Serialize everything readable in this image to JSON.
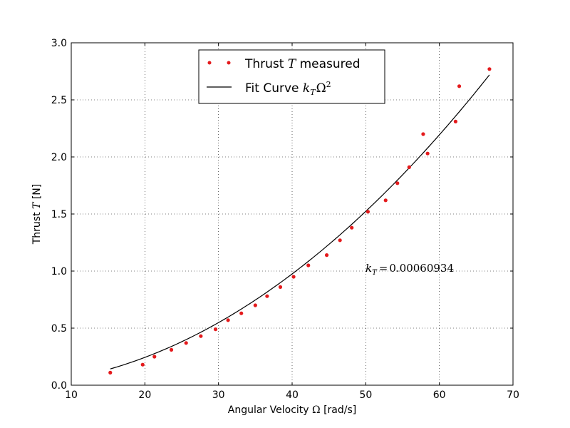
{
  "chart_data": {
    "type": "scatter",
    "title": "",
    "xlabel": {
      "prefix": "Angular Velocity ",
      "symbol": "Ω",
      "suffix": " [rad/s]"
    },
    "ylabel": {
      "prefix": "Thrust ",
      "symbol": "T",
      "suffix": " [N]"
    },
    "xlim": [
      10,
      70
    ],
    "ylim": [
      0.0,
      3.0
    ],
    "xticks": [
      10,
      20,
      30,
      40,
      50,
      60,
      70
    ],
    "xtick_labels": [
      "10",
      "20",
      "30",
      "40",
      "50",
      "60",
      "70"
    ],
    "yticks": [
      0.0,
      0.5,
      1.0,
      1.5,
      2.0,
      2.5,
      3.0
    ],
    "ytick_labels": [
      "0.0",
      "0.5",
      "1.0",
      "1.5",
      "2.0",
      "2.5",
      "3.0"
    ],
    "grid": true,
    "legend_position": "top-center",
    "series": [
      {
        "name": "Thrust T measured",
        "legend": {
          "prefix": "Thrust ",
          "symbol": "T",
          "suffix": " measured"
        },
        "kind": "points",
        "color": "#e41a1c",
        "x": [
          15.3,
          19.7,
          21.3,
          23.6,
          25.6,
          27.6,
          29.6,
          31.3,
          33.1,
          35.0,
          36.6,
          38.4,
          40.2,
          42.2,
          44.7,
          46.5,
          48.1,
          50.3,
          52.7,
          54.3,
          55.9,
          57.8,
          58.4,
          62.2,
          62.7,
          66.8
        ],
        "y": [
          0.11,
          0.18,
          0.25,
          0.31,
          0.37,
          0.43,
          0.49,
          0.57,
          0.63,
          0.7,
          0.78,
          0.86,
          0.95,
          1.05,
          1.14,
          1.27,
          1.38,
          1.52,
          1.62,
          1.77,
          1.91,
          2.2,
          2.03,
          2.31,
          2.62,
          2.77
        ]
      },
      {
        "name": "Fit Curve k_T Ω^2",
        "legend": {
          "prefix": "Fit Curve ",
          "symbol": "k",
          "subscript": "T",
          "omega": "Ω",
          "superscript": "2"
        },
        "kind": "line",
        "color": "#000000",
        "k": 0.00060934,
        "x_range": [
          15.3,
          66.8
        ]
      }
    ],
    "annotation": {
      "symbol": "k",
      "subscript": "T",
      "equals": "=",
      "value": "0.00060934",
      "x": 50.2,
      "y": 1.0
    }
  }
}
